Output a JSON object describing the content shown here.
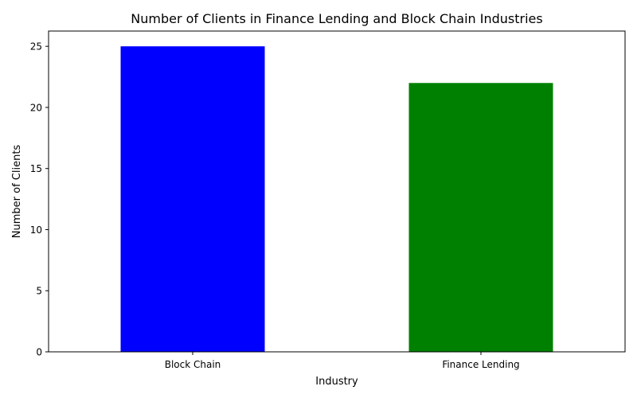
{
  "chart_data": {
    "type": "bar",
    "title": "Number of Clients in Finance Lending and Block Chain Industries",
    "xlabel": "Industry",
    "ylabel": "Number of Clients",
    "categories": [
      "Block Chain",
      "Finance Lending"
    ],
    "values": [
      25,
      22
    ],
    "colors": [
      "#0000ff",
      "#008000"
    ],
    "ylim": [
      0,
      26.25
    ],
    "yticks": [
      0,
      5,
      10,
      15,
      20,
      25
    ],
    "grid": false,
    "legend": "none"
  }
}
